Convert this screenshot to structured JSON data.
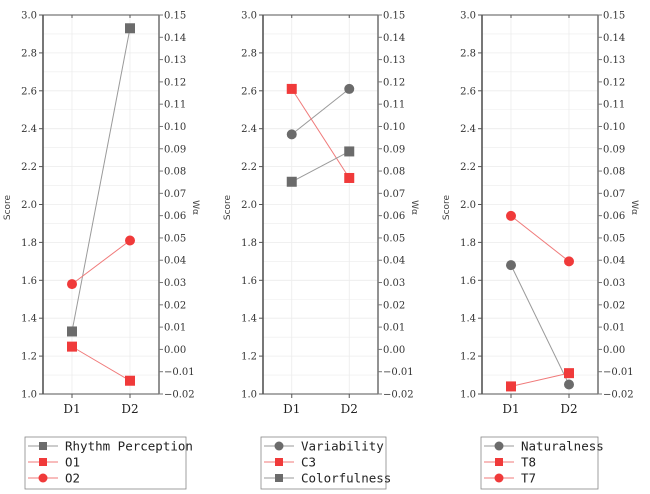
{
  "chart_data": [
    {
      "type": "line",
      "title": "",
      "xlabel": "",
      "ylabel": "Score",
      "ylabel_right": "Wα",
      "categories": [
        "D1",
        "D2"
      ],
      "ylim": [
        1.0,
        3.0
      ],
      "yticks": [
        "1.0",
        "1.2",
        "1.4",
        "1.6",
        "1.8",
        "2.0",
        "2.2",
        "2.4",
        "2.6",
        "2.8",
        "3.0"
      ],
      "ylim_right": [
        -0.02,
        0.15
      ],
      "yticks_right": [
        "−0.02",
        "−0.01",
        "0.00",
        "0.01",
        "0.02",
        "0.03",
        "0.04",
        "0.05",
        "0.06",
        "0.07",
        "0.08",
        "0.09",
        "0.10",
        "0.11",
        "0.12",
        "0.13",
        "0.14",
        "0.15"
      ],
      "grid": true,
      "legend_position": "bottom",
      "series": [
        {
          "name": "Rhythm Perception",
          "marker": "square",
          "color": "#6b6b6b",
          "values": [
            1.33,
            2.93
          ]
        },
        {
          "name": "O1",
          "marker": "square",
          "color": "#f03a3a",
          "values": [
            1.25,
            1.07
          ]
        },
        {
          "name": "O2",
          "marker": "circle",
          "color": "#f03a3a",
          "values": [
            1.58,
            1.81
          ]
        }
      ]
    },
    {
      "type": "line",
      "title": "",
      "xlabel": "",
      "ylabel": "Score",
      "ylabel_right": "Wα",
      "categories": [
        "D1",
        "D2"
      ],
      "ylim": [
        1.0,
        3.0
      ],
      "yticks": [
        "1.0",
        "1.2",
        "1.4",
        "1.6",
        "1.8",
        "2.0",
        "2.2",
        "2.4",
        "2.6",
        "2.8",
        "3.0"
      ],
      "ylim_right": [
        -0.02,
        0.15
      ],
      "yticks_right": [
        "−0.02",
        "−0.01",
        "0.00",
        "0.01",
        "0.02",
        "0.03",
        "0.04",
        "0.05",
        "0.06",
        "0.07",
        "0.08",
        "0.09",
        "0.10",
        "0.11",
        "0.12",
        "0.13",
        "0.14",
        "0.15"
      ],
      "grid": true,
      "legend_position": "bottom",
      "series": [
        {
          "name": "Variability",
          "marker": "circle",
          "color": "#6b6b6b",
          "values": [
            2.37,
            2.61
          ]
        },
        {
          "name": "C3",
          "marker": "square",
          "color": "#f03a3a",
          "values": [
            2.61,
            2.14
          ]
        },
        {
          "name": "Colorfulness",
          "marker": "square",
          "color": "#6b6b6b",
          "values": [
            2.12,
            2.28
          ]
        }
      ]
    },
    {
      "type": "line",
      "title": "",
      "xlabel": "",
      "ylabel": "Score",
      "ylabel_right": "Wα",
      "categories": [
        "D1",
        "D2"
      ],
      "ylim": [
        1.0,
        3.0
      ],
      "yticks": [
        "1.0",
        "1.2",
        "1.4",
        "1.6",
        "1.8",
        "2.0",
        "2.2",
        "2.4",
        "2.6",
        "2.8",
        "3.0"
      ],
      "ylim_right": [
        -0.02,
        0.15
      ],
      "yticks_right": [
        "−0.02",
        "−0.01",
        "0.00",
        "0.01",
        "0.02",
        "0.03",
        "0.04",
        "0.05",
        "0.06",
        "0.07",
        "0.08",
        "0.09",
        "0.10",
        "0.11",
        "0.12",
        "0.13",
        "0.14",
        "0.15"
      ],
      "grid": true,
      "legend_position": "bottom",
      "series": [
        {
          "name": "Naturalness",
          "marker": "circle",
          "color": "#6b6b6b",
          "values": [
            1.68,
            1.05
          ]
        },
        {
          "name": "T8",
          "marker": "square",
          "color": "#f03a3a",
          "values": [
            1.04,
            1.11
          ]
        },
        {
          "name": "T7",
          "marker": "circle",
          "color": "#f03a3a",
          "values": [
            1.94,
            1.7
          ]
        }
      ]
    }
  ]
}
